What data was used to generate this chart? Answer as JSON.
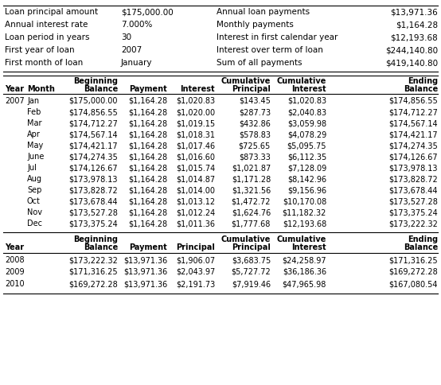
{
  "info_left": [
    [
      "Loan principal amount",
      "$175,000.00"
    ],
    [
      "Annual interest rate",
      "7.000%"
    ],
    [
      "Loan period in years",
      "30"
    ],
    [
      "First year of loan",
      "2007"
    ],
    [
      "First month of loan",
      "January"
    ]
  ],
  "info_right": [
    [
      "Annual loan payments",
      "$13,971.36"
    ],
    [
      "Monthly payments",
      "$1,164.28"
    ],
    [
      "Interest in first calendar year",
      "$12,193.68"
    ],
    [
      "Interest over term of loan",
      "$244,140.80"
    ],
    [
      "Sum of all payments",
      "$419,140.80"
    ]
  ],
  "monthly_data": [
    [
      "2007",
      "Jan",
      "$175,000.00",
      "$1,164.28",
      "$1,020.83",
      "$143.45",
      "$1,020.83",
      "$174,856.55"
    ],
    [
      "",
      "Feb",
      "$174,856.55",
      "$1,164.28",
      "$1,020.00",
      "$287.73",
      "$2,040.83",
      "$174,712.27"
    ],
    [
      "",
      "Mar",
      "$174,712.27",
      "$1,164.28",
      "$1,019.15",
      "$432.86",
      "$3,059.98",
      "$174,567.14"
    ],
    [
      "",
      "Apr",
      "$174,567.14",
      "$1,164.28",
      "$1,018.31",
      "$578.83",
      "$4,078.29",
      "$174,421.17"
    ],
    [
      "",
      "May",
      "$174,421.17",
      "$1,164.28",
      "$1,017.46",
      "$725.65",
      "$5,095.75",
      "$174,274.35"
    ],
    [
      "",
      "June",
      "$174,274.35",
      "$1,164.28",
      "$1,016.60",
      "$873.33",
      "$6,112.35",
      "$174,126.67"
    ],
    [
      "",
      "Jul",
      "$174,126.67",
      "$1,164.28",
      "$1,015.74",
      "$1,021.87",
      "$7,128.09",
      "$173,978.13"
    ],
    [
      "",
      "Aug",
      "$173,978.13",
      "$1,164.28",
      "$1,014.87",
      "$1,171.28",
      "$8,142.96",
      "$173,828.72"
    ],
    [
      "",
      "Sep",
      "$173,828.72",
      "$1,164.28",
      "$1,014.00",
      "$1,321.56",
      "$9,156.96",
      "$173,678.44"
    ],
    [
      "",
      "Oct",
      "$173,678.44",
      "$1,164.28",
      "$1,013.12",
      "$1,472.72",
      "$10,170.08",
      "$173,527.28"
    ],
    [
      "",
      "Nov",
      "$173,527.28",
      "$1,164.28",
      "$1,012.24",
      "$1,624.76",
      "$11,182.32",
      "$173,375.24"
    ],
    [
      "",
      "Dec",
      "$173,375.24",
      "$1,164.28",
      "$1,011.36",
      "$1,777.68",
      "$12,193.68",
      "$173,222.32"
    ]
  ],
  "annual_data": [
    [
      "2008",
      "",
      "$173,222.32",
      "$13,971.36",
      "$1,906.07",
      "$3,683.75",
      "$24,258.97",
      "$171,316.25"
    ],
    [
      "2009",
      "",
      "$171,316.25",
      "$13,971.36",
      "$2,043.97",
      "$5,727.72",
      "$36,186.36",
      "$169,272.28"
    ],
    [
      "2010",
      "",
      "$169,272.28",
      "$13,971.36",
      "$2,191.73",
      "$7,919.46",
      "$47,965.98",
      "$167,080.54"
    ]
  ],
  "bg_color": "#ffffff",
  "text_color": "#000000",
  "font_size": 7.0,
  "header_font_size": 7.0,
  "info_font_size": 7.5
}
